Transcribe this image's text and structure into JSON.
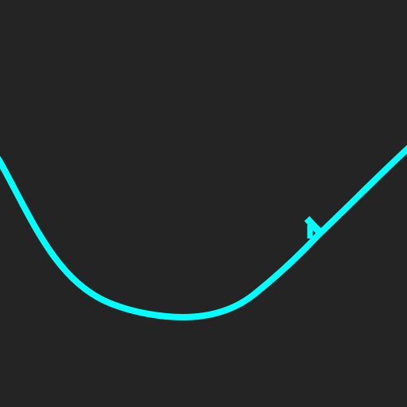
{
  "colors": {
    "background": "#242424",
    "stroke": "#00ffff"
  },
  "scene": {
    "type": "curve-drawing",
    "curve": {
      "shape": "valley",
      "color": "#00ffff"
    },
    "marker": {
      "shape": "arrow-marker",
      "color": "#00ffff"
    }
  }
}
